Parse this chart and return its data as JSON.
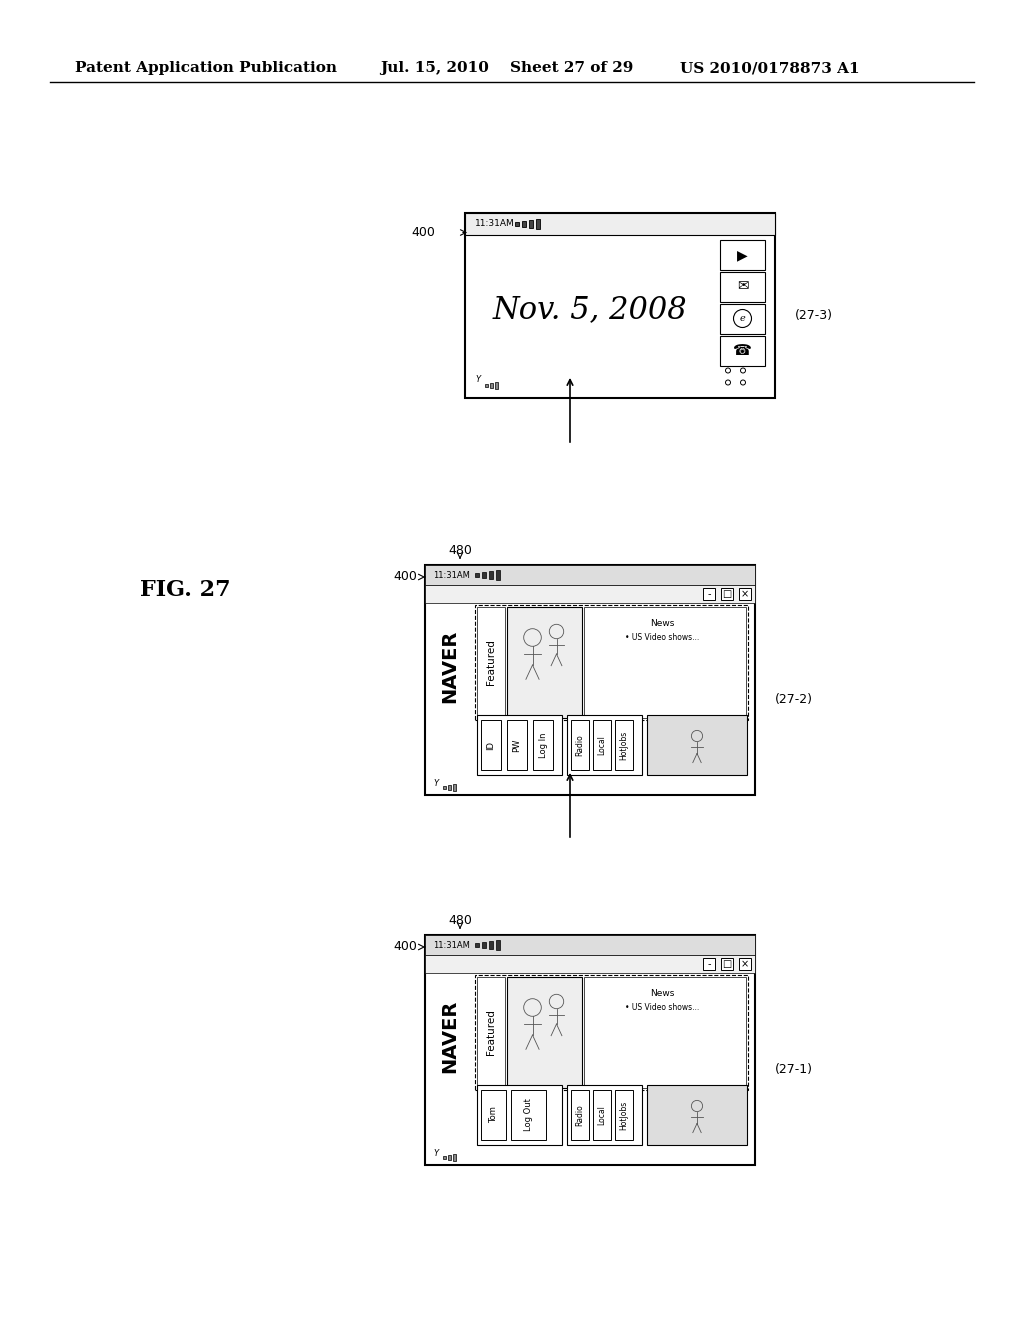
{
  "bg_color": "#ffffff",
  "header_text": "Patent Application Publication",
  "header_date": "Jul. 15, 2010",
  "header_sheet": "Sheet 27 of 29",
  "header_patent": "US 2010/0178873 A1",
  "fig_label": "FIG. 27",
  "diagram_label_271": "(27-1)",
  "diagram_label_272": "(27-2)",
  "diagram_label_273": "(27-3)",
  "label_400_1": "400",
  "label_400_2": "400",
  "label_400_3": "400",
  "label_480_1": "480",
  "label_480_2": "480",
  "time_text": "11:31AM",
  "naver_text": "NAVER",
  "featured_text": "Featured",
  "news_text": "News",
  "video_text": "• US Video shows...",
  "date_text": "Nov. 5, 2008",
  "tom_text": "Tom",
  "logout_text": "Log Out",
  "id_text": "ID",
  "pw_text": "PW",
  "login_text": "Log In",
  "radio_text": "Radio",
  "local_text": "Local",
  "hotjobs_text": "HotJobs"
}
